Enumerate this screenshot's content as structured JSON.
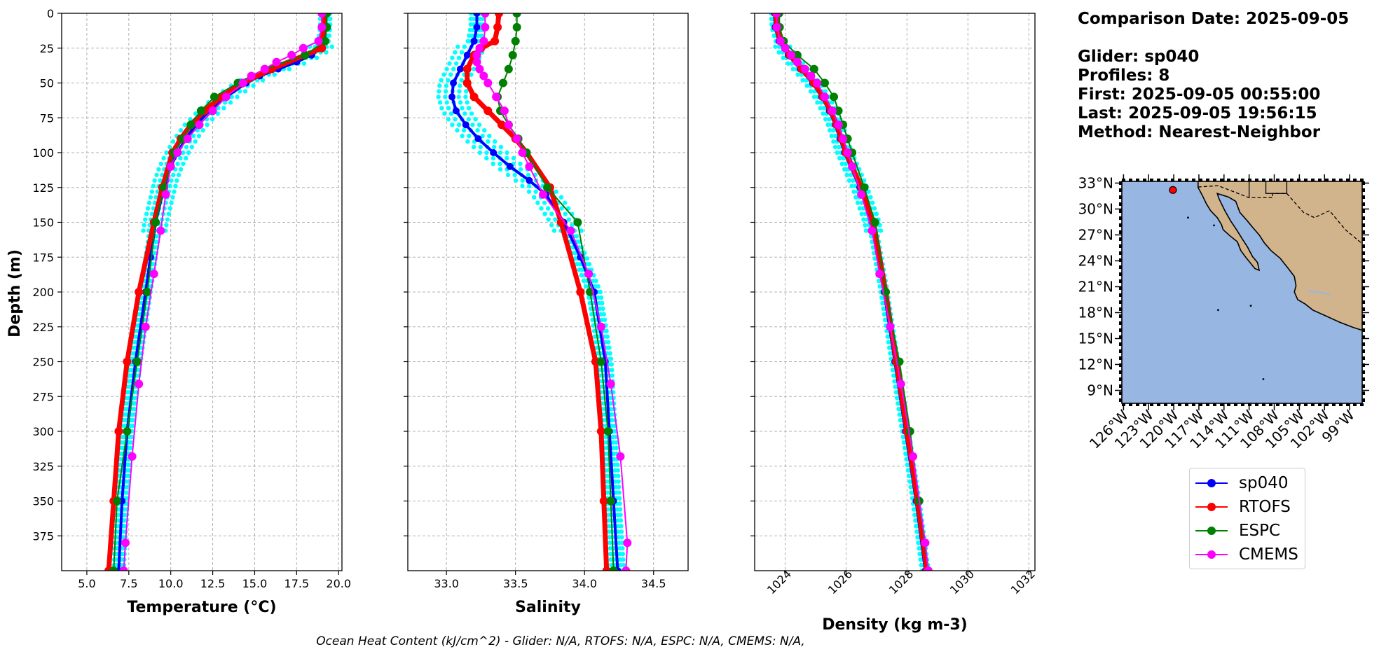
{
  "info": {
    "comparison_date": "Comparison Date: 2025-09-05",
    "glider": "Glider: sp040",
    "profiles": "Profiles: 8",
    "first": "First: 2025-09-05 00:55:00",
    "last": "Last: 2025-09-05 19:56:15",
    "method": "Method: Nearest-Neighbor"
  },
  "footer": "Ocean Heat Content (kJ/cm^2) - Glider: N/A,  RTOFS: N/A,  ESPC: N/A,  CMEMS: N/A,",
  "colors": {
    "glider": "#0000ff",
    "glider_raw": "#00ffff",
    "rtofs": "#ff0000",
    "espc": "#008000",
    "cmems": "#ff00ff",
    "ocean": "#97b6e1",
    "land": "#d2b48c",
    "grid": "#b0b0b0"
  },
  "legend": [
    {
      "label": "sp040",
      "color": "#0000ff"
    },
    {
      "label": "RTOFS",
      "color": "#ff0000"
    },
    {
      "label": "ESPC",
      "color": "#008000"
    },
    {
      "label": "CMEMS",
      "color": "#ff00ff"
    }
  ],
  "chart_data": [
    {
      "type": "line",
      "xlabel": "Temperature (°C)",
      "ylabel": "Depth (m)",
      "xlim": [
        3.5,
        20.2
      ],
      "ylim": [
        400,
        0
      ],
      "xticks": [
        "5.0",
        "7.5",
        "10.0",
        "12.5",
        "15.0",
        "17.5",
        "20.0"
      ],
      "yticks": [
        "0",
        "25",
        "50",
        "75",
        "100",
        "125",
        "150",
        "175",
        "200",
        "225",
        "250",
        "275",
        "300",
        "325",
        "350",
        "375"
      ],
      "grid": true,
      "series": [
        {
          "name": "sp040",
          "depth": [
            0,
            10,
            20,
            25,
            30,
            35,
            40,
            45,
            50,
            60,
            70,
            80,
            90,
            100,
            110,
            120,
            130,
            150,
            175,
            200,
            250,
            300,
            350,
            400
          ],
          "values": [
            19.2,
            19.2,
            19.1,
            18.9,
            18.4,
            17.5,
            16.4,
            15.3,
            14.5,
            13.3,
            12.3,
            11.5,
            10.9,
            10.4,
            10.0,
            9.7,
            9.5,
            9.1,
            8.8,
            8.5,
            7.9,
            7.4,
            7.1,
            6.9
          ]
        },
        {
          "name": "RTOFS",
          "depth": [
            0,
            10,
            20,
            25,
            30,
            40,
            50,
            60,
            70,
            80,
            90,
            100,
            125,
            150,
            200,
            250,
            300,
            350,
            400
          ],
          "values": [
            19.1,
            19.1,
            19.0,
            19.0,
            18.0,
            16.0,
            14.3,
            13.0,
            12.0,
            11.2,
            10.6,
            10.1,
            9.5,
            9.0,
            8.1,
            7.4,
            6.9,
            6.6,
            6.3
          ]
        },
        {
          "name": "ESPC",
          "depth": [
            0,
            10,
            20,
            30,
            40,
            50,
            60,
            70,
            80,
            90,
            100,
            125,
            150,
            200,
            250,
            300,
            350,
            400
          ],
          "values": [
            19.3,
            19.3,
            19.2,
            18.0,
            15.6,
            14.0,
            12.6,
            11.8,
            11.2,
            10.7,
            10.2,
            9.6,
            9.1,
            8.6,
            8.0,
            7.4,
            6.8,
            6.6
          ]
        },
        {
          "name": "CMEMS",
          "depth": [
            0,
            10,
            20,
            25,
            30,
            35,
            40,
            45,
            50,
            60,
            70,
            80,
            90,
            100,
            110,
            130,
            156,
            187,
            225,
            266,
            318,
            380,
            400
          ],
          "values": [
            19.0,
            19.0,
            18.8,
            17.9,
            17.2,
            16.3,
            15.6,
            14.8,
            14.3,
            13.3,
            12.5,
            11.7,
            11.0,
            10.4,
            10.0,
            9.7,
            9.4,
            9.0,
            8.5,
            8.1,
            7.7,
            7.3,
            7.2
          ]
        }
      ]
    },
    {
      "type": "line",
      "xlabel": "Salinity",
      "ylim": [
        400,
        0
      ],
      "xlim": [
        32.72,
        34.75
      ],
      "xticks": [
        "33.0",
        "33.5",
        "34.0",
        "34.5"
      ],
      "grid": true,
      "series": [
        {
          "name": "sp040",
          "depth": [
            0,
            10,
            20,
            30,
            40,
            50,
            60,
            70,
            80,
            90,
            100,
            110,
            120,
            130,
            150,
            175,
            200,
            250,
            300,
            350,
            400
          ],
          "values": [
            33.22,
            33.22,
            33.2,
            33.15,
            33.1,
            33.05,
            33.04,
            33.07,
            33.14,
            33.23,
            33.34,
            33.46,
            33.6,
            33.72,
            33.85,
            33.97,
            34.07,
            34.15,
            34.18,
            34.21,
            34.24
          ]
        },
        {
          "name": "RTOFS",
          "depth": [
            0,
            10,
            20,
            25,
            30,
            40,
            50,
            60,
            70,
            80,
            90,
            100,
            125,
            150,
            200,
            250,
            300,
            350,
            400
          ],
          "values": [
            33.38,
            33.37,
            33.35,
            33.25,
            33.2,
            33.15,
            33.15,
            33.2,
            33.3,
            33.4,
            33.5,
            33.58,
            33.75,
            33.83,
            33.97,
            34.08,
            34.12,
            34.14,
            34.16
          ]
        },
        {
          "name": "ESPC",
          "depth": [
            0,
            10,
            20,
            30,
            40,
            50,
            60,
            70,
            80,
            90,
            100,
            125,
            150,
            200,
            250,
            300,
            350,
            400
          ],
          "values": [
            33.51,
            33.51,
            33.5,
            33.48,
            33.45,
            33.41,
            33.37,
            33.39,
            33.45,
            33.52,
            33.58,
            33.73,
            33.95,
            34.04,
            34.12,
            34.17,
            34.19,
            34.21
          ]
        },
        {
          "name": "CMEMS",
          "depth": [
            0,
            10,
            20,
            25,
            30,
            35,
            40,
            45,
            50,
            60,
            70,
            80,
            90,
            100,
            110,
            130,
            156,
            187,
            225,
            266,
            318,
            380,
            400
          ],
          "values": [
            33.28,
            33.28,
            33.27,
            33.24,
            33.22,
            33.22,
            33.24,
            33.27,
            33.3,
            33.36,
            33.42,
            33.45,
            33.51,
            33.55,
            33.6,
            33.7,
            33.9,
            34.03,
            34.12,
            34.19,
            34.26,
            34.31,
            34.3
          ]
        }
      ]
    },
    {
      "type": "line",
      "xlabel": "Density (kg m-3)",
      "ylim": [
        400,
        0
      ],
      "xlim": [
        1023.0,
        1032.2
      ],
      "xticks": [
        "1024",
        "1026",
        "1028",
        "1030",
        "1032"
      ],
      "grid": true,
      "series": [
        {
          "name": "sp040",
          "depth": [
            0,
            10,
            20,
            30,
            40,
            50,
            60,
            70,
            80,
            90,
            100,
            125,
            150,
            200,
            250,
            300,
            350,
            400
          ],
          "values": [
            1023.65,
            1023.67,
            1023.8,
            1024.1,
            1024.5,
            1024.9,
            1025.2,
            1025.45,
            1025.65,
            1025.8,
            1025.95,
            1026.45,
            1026.85,
            1027.25,
            1027.6,
            1027.95,
            1028.3,
            1028.6
          ]
        },
        {
          "name": "RTOFS",
          "depth": [
            0,
            10,
            20,
            30,
            40,
            50,
            60,
            70,
            80,
            90,
            100,
            125,
            150,
            200,
            250,
            300,
            350,
            400
          ],
          "values": [
            1023.7,
            1023.72,
            1023.85,
            1024.15,
            1024.55,
            1024.95,
            1025.25,
            1025.5,
            1025.7,
            1025.85,
            1026.0,
            1026.5,
            1026.9,
            1027.3,
            1027.65,
            1028.0,
            1028.35,
            1028.65
          ]
        },
        {
          "name": "ESPC",
          "depth": [
            0,
            10,
            20,
            30,
            40,
            50,
            60,
            70,
            80,
            90,
            100,
            125,
            150,
            200,
            250,
            300,
            350,
            400
          ],
          "values": [
            1023.8,
            1023.82,
            1023.95,
            1024.4,
            1024.95,
            1025.3,
            1025.6,
            1025.75,
            1025.9,
            1026.05,
            1026.2,
            1026.6,
            1026.95,
            1027.3,
            1027.75,
            1028.1,
            1028.4,
            1028.7
          ]
        },
        {
          "name": "CMEMS",
          "depth": [
            0,
            10,
            20,
            25,
            30,
            35,
            40,
            45,
            50,
            60,
            70,
            80,
            90,
            100,
            110,
            130,
            156,
            187,
            225,
            266,
            318,
            380,
            400
          ],
          "values": [
            1023.72,
            1023.73,
            1023.85,
            1024.0,
            1024.2,
            1024.4,
            1024.65,
            1024.85,
            1025.05,
            1025.3,
            1025.55,
            1025.75,
            1025.9,
            1026.05,
            1026.2,
            1026.5,
            1026.85,
            1027.1,
            1027.45,
            1027.8,
            1028.2,
            1028.6,
            1028.7
          ]
        }
      ]
    },
    {
      "type": "map",
      "lat_ticks": [
        "33°N",
        "30°N",
        "27°N",
        "24°N",
        "21°N",
        "18°N",
        "15°N",
        "12°N",
        "9°N"
      ],
      "lon_ticks": [
        "126°W",
        "123°W",
        "120°W",
        "117°W",
        "114°W",
        "111°W",
        "108°W",
        "105°W",
        "102°W",
        "99°W"
      ],
      "extent": {
        "lon": [
          -126.2,
          -97.5
        ],
        "lat": [
          7.5,
          33.2
        ]
      },
      "glider_location": {
        "lon": -120.1,
        "lat": 32.2
      }
    }
  ]
}
